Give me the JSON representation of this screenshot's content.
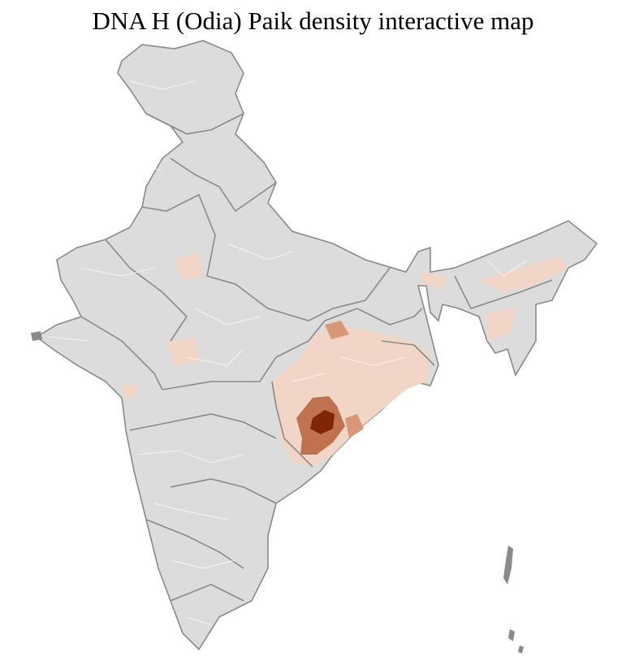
{
  "title": "DNA H (Odia) Paik density interactive map"
}
